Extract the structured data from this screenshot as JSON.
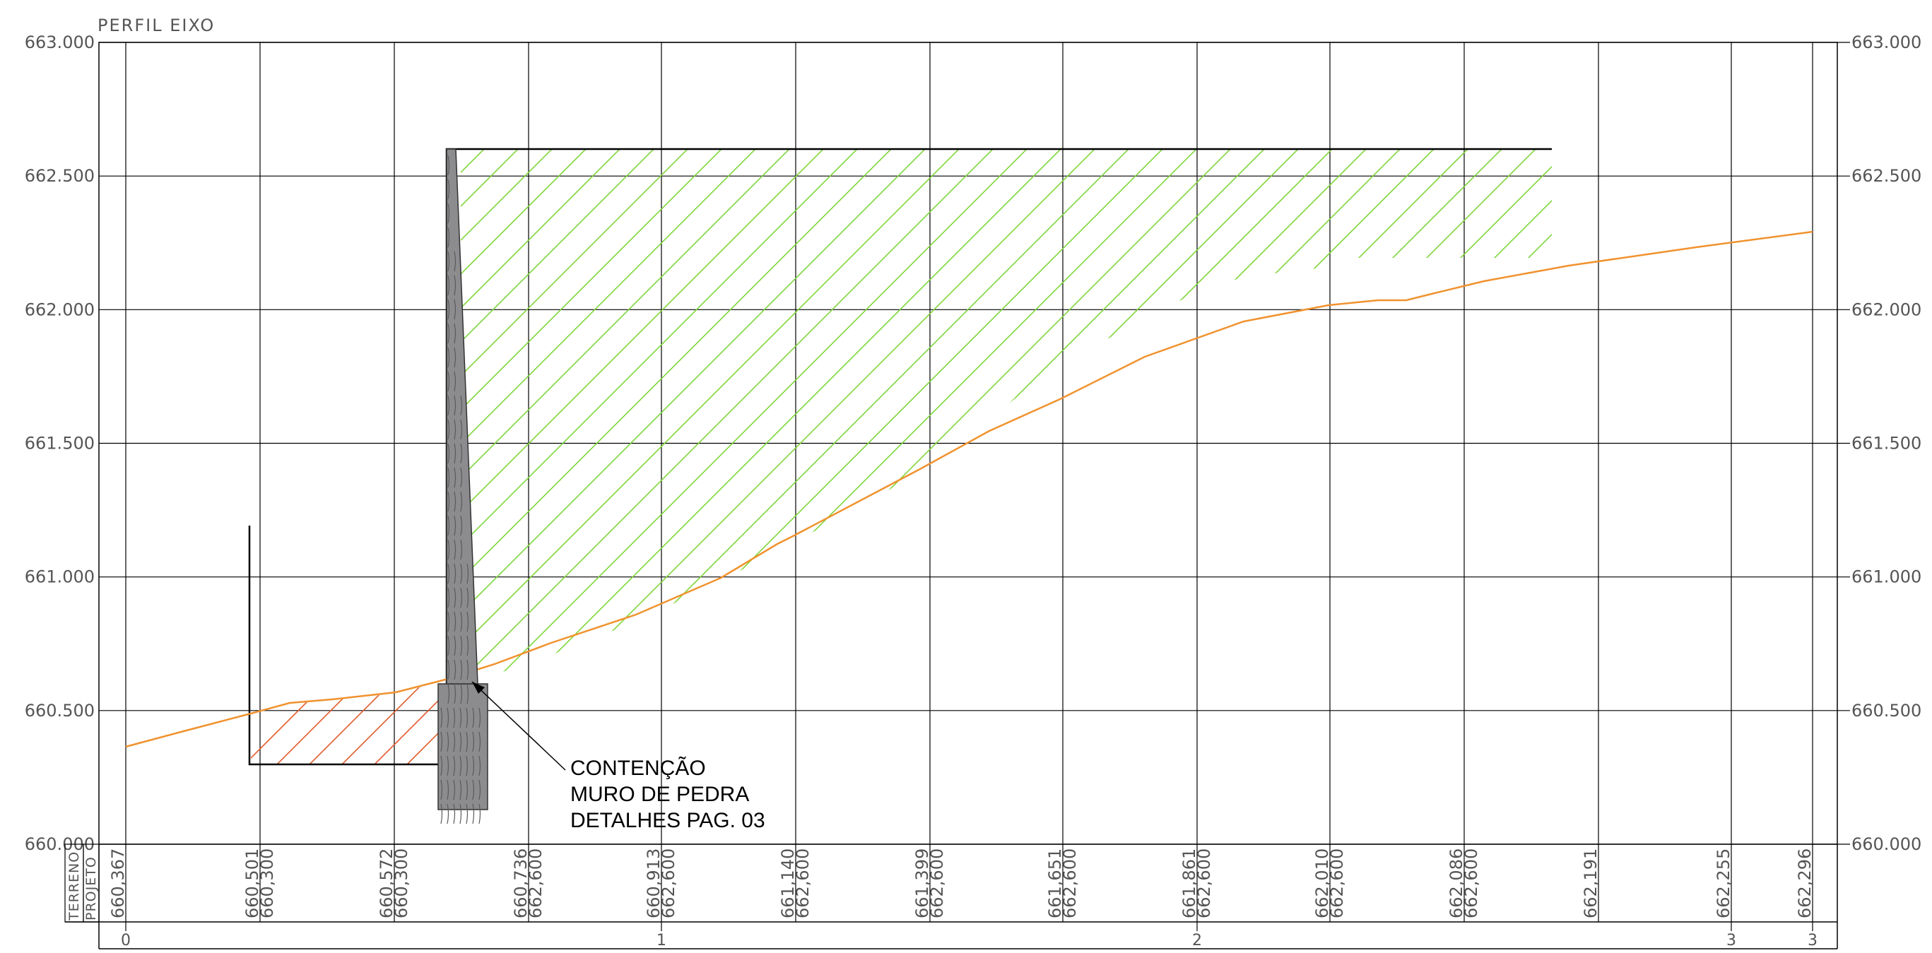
{
  "title": "PERFIL  EIXO",
  "colors": {
    "grid": "#000000",
    "terrain_line": "#f0922e",
    "fill_hatch": "#7fd63a",
    "cut_hatch": "#e05a2a",
    "wall_fill": "#8c8c8f",
    "wall_stroke": "#333333",
    "text": "#555555"
  },
  "axis": {
    "y_min": 660.0,
    "y_max": 663.0,
    "ticks": [
      "663.000",
      "662.500",
      "662.000",
      "661.500",
      "661.000",
      "660.500",
      "660.000"
    ],
    "tick_values": [
      663.0,
      662.5,
      662.0,
      661.5,
      661.0,
      660.5,
      660.0
    ]
  },
  "annotation": {
    "lines": [
      "CONTENÇÃO",
      "MURO DE PEDRA",
      "DETALHES PAG. 03"
    ]
  },
  "table": {
    "row_labels": [
      "TERRENO",
      "PROJETO"
    ],
    "columns": [
      {
        "terreno": "660,367",
        "projeto": ""
      },
      {
        "terreno": "660,501",
        "projeto": "660,300"
      },
      {
        "terreno": "660,572",
        "projeto": "660,300"
      },
      {
        "terreno": "660,736",
        "projeto": "662,600"
      },
      {
        "terreno": "660,913",
        "projeto": "662,600"
      },
      {
        "terreno": "661,140",
        "projeto": "662,600"
      },
      {
        "terreno": "661,399",
        "projeto": "662,600"
      },
      {
        "terreno": "661,651",
        "projeto": "662,600"
      },
      {
        "terreno": "661,861",
        "projeto": "662,600"
      },
      {
        "terreno": "662,010",
        "projeto": "662,600"
      },
      {
        "terreno": "662,086",
        "projeto": "662,600"
      },
      {
        "terreno": "662,191",
        "projeto": ""
      },
      {
        "terreno": "662,255",
        "projeto": ""
      },
      {
        "terreno": "662,296",
        "projeto": ""
      }
    ],
    "stations": [
      "0",
      "1",
      "2",
      "3",
      "3"
    ]
  }
}
